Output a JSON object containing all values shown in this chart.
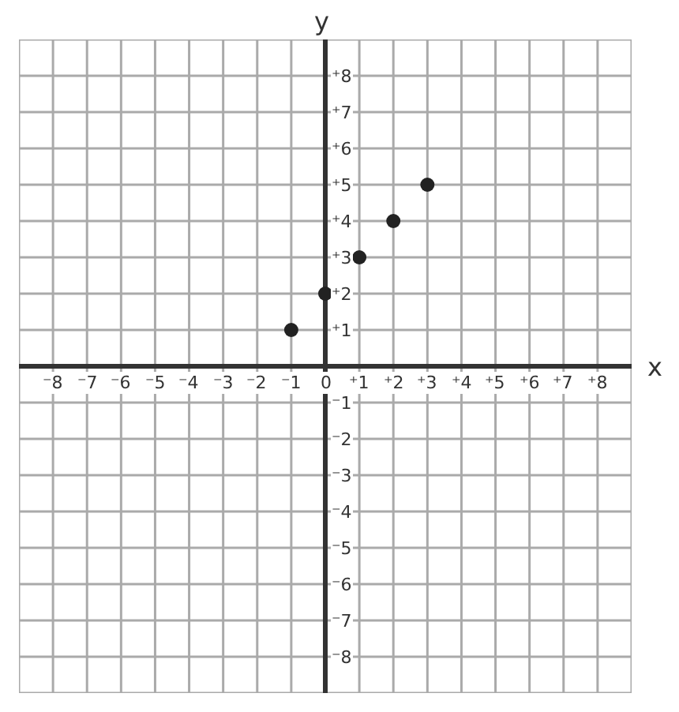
{
  "chart_data": {
    "type": "scatter",
    "xlabel": "x",
    "ylabel": "y",
    "x": [
      -1,
      0,
      1,
      2,
      3
    ],
    "series": [
      {
        "color": "#222222",
        "values": [
          1,
          2,
          3,
          4,
          5
        ]
      }
    ],
    "marker": "circle",
    "grid": true,
    "xlim": [
      -9,
      9
    ],
    "ylim": [
      -9,
      9
    ],
    "xticks": [
      {
        "value": -8,
        "label": "⁻8"
      },
      {
        "value": -7,
        "label": "⁻7"
      },
      {
        "value": -6,
        "label": "⁻6"
      },
      {
        "value": -5,
        "label": "⁻5"
      },
      {
        "value": -4,
        "label": "⁻4"
      },
      {
        "value": -3,
        "label": "⁻3"
      },
      {
        "value": -2,
        "label": "⁻2"
      },
      {
        "value": -1,
        "label": "⁻1"
      },
      0,
      {
        "value": 1,
        "label": "⁺1"
      },
      {
        "value": 2,
        "label": "⁺2"
      },
      {
        "value": 3,
        "label": "⁺3"
      },
      {
        "value": 4,
        "label": "⁺4"
      },
      {
        "value": 5,
        "label": "⁺5"
      },
      {
        "value": 6,
        "label": "⁺6"
      },
      {
        "value": 7,
        "label": "⁺7"
      },
      {
        "value": 8,
        "label": "⁺8"
      }
    ],
    "yticks": [
      {
        "value": -8,
        "label": "⁻8"
      },
      {
        "value": -7,
        "label": "⁻7"
      },
      {
        "value": -6,
        "label": "⁻6"
      },
      {
        "value": -5,
        "label": "⁻5"
      },
      {
        "value": -4,
        "label": "⁻4"
      },
      {
        "value": -3,
        "label": "⁻3"
      },
      {
        "value": -2,
        "label": "⁻2"
      },
      {
        "value": -1,
        "label": "⁻1"
      },
      {
        "value": 1,
        "label": "⁺1"
      },
      {
        "value": 2,
        "label": "⁺2"
      },
      {
        "value": 3,
        "label": "⁺3"
      },
      {
        "value": 4,
        "label": "⁺4"
      },
      {
        "value": 5,
        "label": "⁺5"
      },
      {
        "value": 6,
        "label": "⁺6"
      },
      {
        "value": 7,
        "label": "⁺7"
      },
      {
        "value": 8,
        "label": "⁺8"
      }
    ]
  }
}
